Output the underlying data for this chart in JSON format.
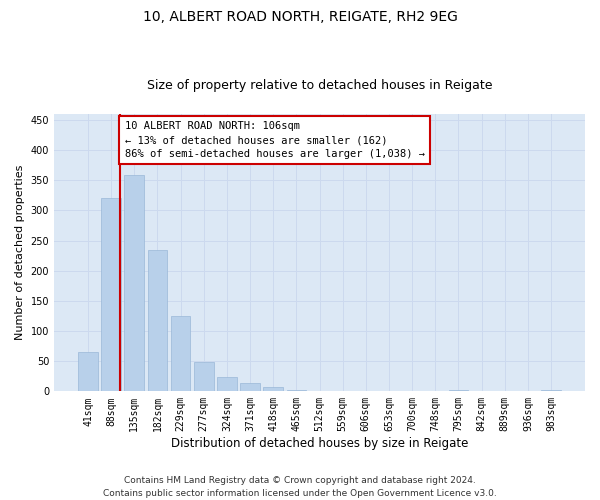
{
  "title1": "10, ALBERT ROAD NORTH, REIGATE, RH2 9EG",
  "title2": "Size of property relative to detached houses in Reigate",
  "xlabel": "Distribution of detached houses by size in Reigate",
  "ylabel": "Number of detached properties",
  "categories": [
    "41sqm",
    "88sqm",
    "135sqm",
    "182sqm",
    "229sqm",
    "277sqm",
    "324sqm",
    "371sqm",
    "418sqm",
    "465sqm",
    "512sqm",
    "559sqm",
    "606sqm",
    "653sqm",
    "700sqm",
    "748sqm",
    "795sqm",
    "842sqm",
    "889sqm",
    "936sqm",
    "983sqm"
  ],
  "values": [
    65,
    320,
    358,
    235,
    125,
    49,
    24,
    13,
    8,
    3,
    1,
    1,
    0,
    1,
    0,
    0,
    2,
    0,
    1,
    0,
    2
  ],
  "bar_color": "#b8d0ea",
  "bar_edge_color": "#9ab8d8",
  "grid_color": "#ccd9ee",
  "background_color": "#dce8f5",
  "annotation_box_color": "#cc0000",
  "property_line_color": "#cc0000",
  "annotation_line1": "10 ALBERT ROAD NORTH: 106sqm",
  "annotation_line2": "← 13% of detached houses are smaller (162)",
  "annotation_line3": "86% of semi-detached houses are larger (1,038) →",
  "footer_text": "Contains HM Land Registry data © Crown copyright and database right 2024.\nContains public sector information licensed under the Open Government Licence v3.0.",
  "ylim": [
    0,
    460
  ],
  "yticks": [
    0,
    50,
    100,
    150,
    200,
    250,
    300,
    350,
    400,
    450
  ],
  "title1_fontsize": 10,
  "title2_fontsize": 9,
  "xlabel_fontsize": 8.5,
  "ylabel_fontsize": 8,
  "tick_fontsize": 7,
  "annotation_fontsize": 7.5,
  "footer_fontsize": 6.5
}
